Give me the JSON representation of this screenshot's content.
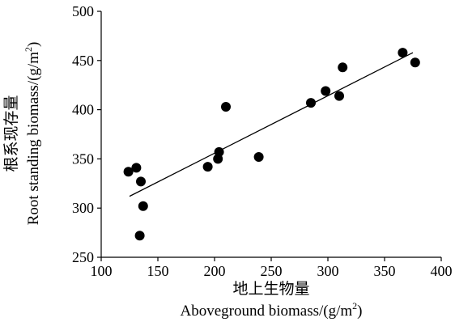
{
  "chart_data": {
    "type": "scatter",
    "xlabel_cn": "地上生物量",
    "xlabel_en": "Aboveground biomass/(g/m",
    "xlabel_sup": "2",
    "xlabel_close": ")",
    "ylabel_cn": "根系现存量",
    "ylabel_en": "Root standing biomass/(g/m",
    "ylabel_sup": "2",
    "ylabel_close": ")",
    "xlim": [
      100,
      400
    ],
    "ylim": [
      250,
      500
    ],
    "xticks": [
      100,
      150,
      200,
      250,
      300,
      350,
      400
    ],
    "yticks": [
      250,
      300,
      350,
      400,
      450,
      500
    ],
    "grid": false,
    "points": [
      {
        "x": 124,
        "y": 337
      },
      {
        "x": 131,
        "y": 341
      },
      {
        "x": 135,
        "y": 327
      },
      {
        "x": 134,
        "y": 272
      },
      {
        "x": 137,
        "y": 302
      },
      {
        "x": 194,
        "y": 342
      },
      {
        "x": 203,
        "y": 350
      },
      {
        "x": 204,
        "y": 357
      },
      {
        "x": 210,
        "y": 403
      },
      {
        "x": 239,
        "y": 352
      },
      {
        "x": 285,
        "y": 407
      },
      {
        "x": 298,
        "y": 419
      },
      {
        "x": 310,
        "y": 414
      },
      {
        "x": 313,
        "y": 443
      },
      {
        "x": 366,
        "y": 458
      },
      {
        "x": 377,
        "y": 448
      }
    ],
    "trendline": {
      "x": [
        125,
        375
      ],
      "y": [
        312,
        458
      ]
    }
  }
}
